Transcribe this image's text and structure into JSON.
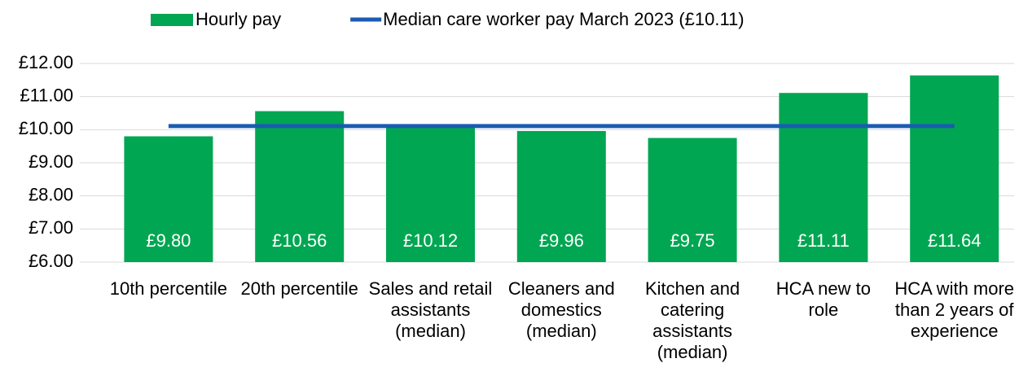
{
  "chart_data": {
    "type": "bar",
    "categories": [
      "10th percentile",
      "20th percentile",
      "Sales and retail assistants (median)",
      "Cleaners and domestics (median)",
      "Kitchen and catering assistants (median)",
      "HCA new to role",
      "HCA with more than 2 years of experience"
    ],
    "series": [
      {
        "name": "Hourly pay",
        "type": "bar",
        "color": "#00a651",
        "values": [
          9.8,
          10.56,
          10.12,
          9.96,
          9.75,
          11.11,
          11.64
        ],
        "value_labels": [
          "£9.80",
          "£10.56",
          "£10.12",
          "£9.96",
          "£9.75",
          "£11.11",
          "£11.64"
        ]
      },
      {
        "name": "Median care worker pay March 2023 (£10.11)",
        "type": "line",
        "color": "#1a5cb0",
        "values": [
          10.11,
          10.11,
          10.11,
          10.11,
          10.11,
          10.11,
          10.11
        ]
      }
    ],
    "ylim": [
      6,
      12
    ],
    "yticks": [
      {
        "value": 6,
        "label": "£6.00"
      },
      {
        "value": 7,
        "label": "£7.00"
      },
      {
        "value": 8,
        "label": "£8.00"
      },
      {
        "value": 9,
        "label": "£9.00"
      },
      {
        "value": 10,
        "label": "£10.00"
      },
      {
        "value": 11,
        "label": "£11.00"
      },
      {
        "value": 12,
        "label": "£12.00"
      }
    ],
    "grid": true,
    "legend": "top"
  }
}
